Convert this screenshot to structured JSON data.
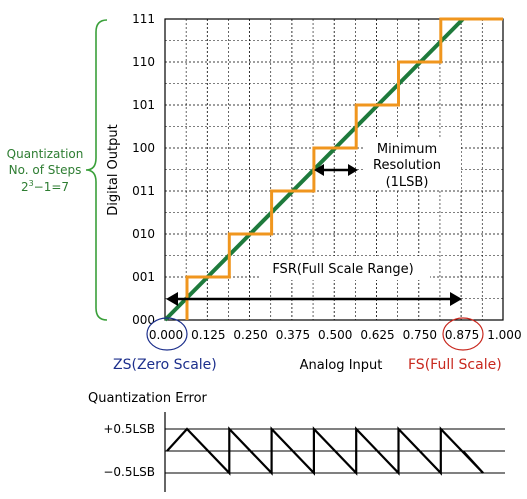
{
  "y_ticks": [
    "000",
    "001",
    "010",
    "011",
    "100",
    "101",
    "110",
    "111"
  ],
  "x_ticks": [
    "0.000",
    "0.125",
    "0.250",
    "0.375",
    "0.500",
    "0.625",
    "0.750",
    "0.875",
    "1.000"
  ],
  "y_axis_label": "Digital Output",
  "x_axis_label": "Analog Input",
  "zero_scale_label": "ZS(Zero Scale)",
  "full_scale_label": "FS(Full Scale)",
  "quantization": {
    "line1": "Quantization",
    "line2": "No. of Steps",
    "base": "2",
    "exp": "3",
    "tail": "−1=7"
  },
  "min_resolution": {
    "line1": "Minimum",
    "line2": "Resolution",
    "line3": "(1LSB)"
  },
  "fsr_label": "FSR(Full Scale Range)",
  "error_title": "Quantization Error",
  "error_plus": "+0.5LSB",
  "error_minus": "−0.5LSB",
  "colors": {
    "staircase": "#f0961e",
    "ideal_line": "#1e7a3c",
    "zs": "#1c2f8c",
    "fs": "#c8281e",
    "brace": "#3aa03a",
    "quant_text": "#2e7d32"
  }
}
